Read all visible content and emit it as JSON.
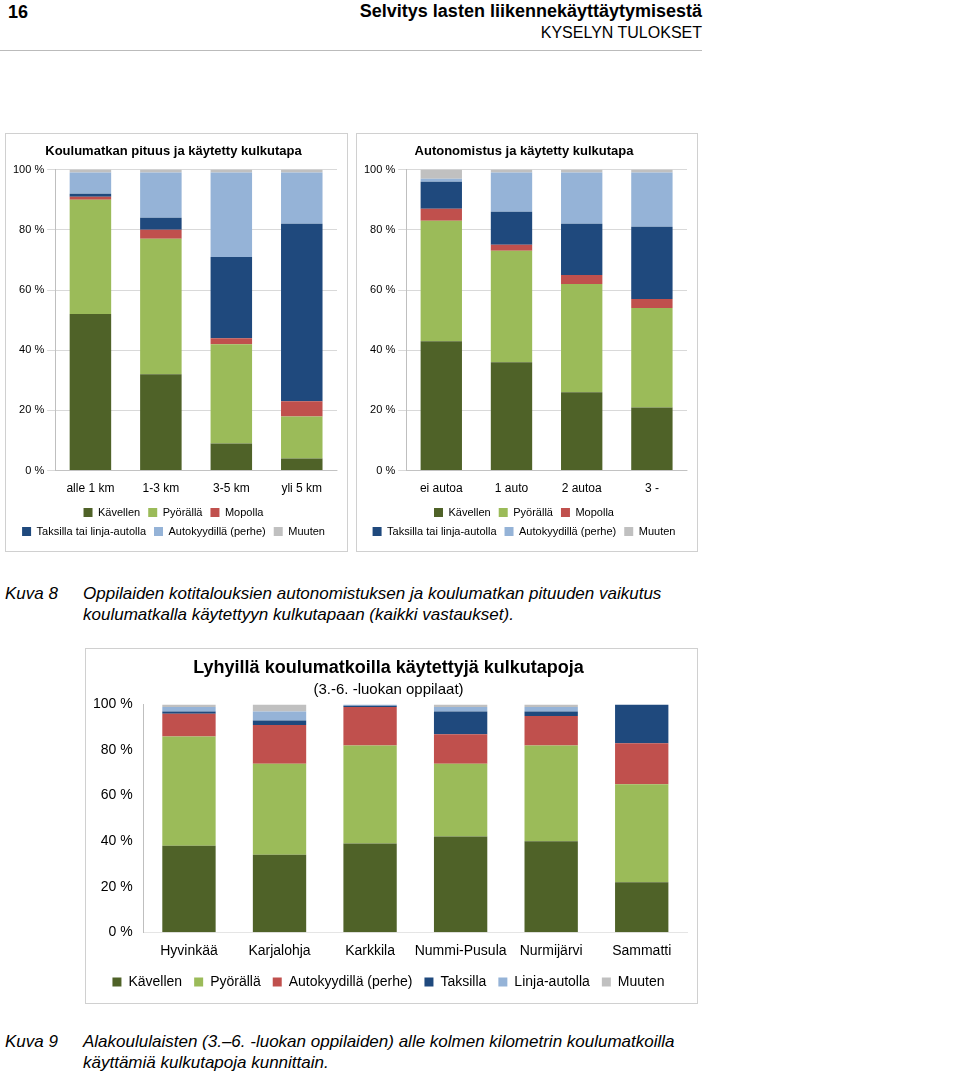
{
  "page": {
    "page_number": "16",
    "header_title": "Selvitys lasten liikennekäyttäytymisestä",
    "header_subtitle": "KYSELYN TULOKSET",
    "figures": [
      {
        "label": "Kuva 8",
        "caption": "Oppilaiden kotitalouksien autonomistuksen ja koulumatkan pituuden vaikutus koulumatkalla käytettyyn kulkutapaan (kaikki vastaukset)."
      },
      {
        "label": "Kuva 9",
        "caption": "Alakoululaisten (3.–6. -luokan oppilaiden) alle kolmen kilometrin koulumatkoilla käyttämiä kulkutapoja kunnittain."
      }
    ]
  },
  "chart_data": [
    {
      "type": "bar",
      "stacked": true,
      "title": "Koulumatkan pituus ja käytetty kulkutapa",
      "categories": [
        "alle 1 km",
        "1-3 km",
        "3-5 km",
        "yli 5 km"
      ],
      "series": [
        {
          "name": "Kävellen",
          "color": "#4f6228",
          "values": [
            52,
            32,
            9,
            4
          ]
        },
        {
          "name": "Pyörällä",
          "color": "#9bbb59",
          "values": [
            38,
            45,
            33,
            14
          ]
        },
        {
          "name": "Mopolla",
          "color": "#c0504d",
          "values": [
            1,
            3,
            2,
            5
          ]
        },
        {
          "name": "Taksilla tai linja-autolla",
          "color": "#1f497d",
          "values": [
            1,
            4,
            27,
            59
          ]
        },
        {
          "name": "Autokyydillä (perhe)",
          "color": "#95b3d7",
          "values": [
            7,
            15,
            28,
            17
          ]
        },
        {
          "name": "Muuten",
          "color": "#c0c0c0",
          "values": [
            1,
            1,
            1,
            1
          ]
        }
      ],
      "ylim": [
        0,
        100
      ],
      "yticks": [
        {
          "value": 0,
          "label": "0 %"
        },
        {
          "value": 20,
          "label": "20 %"
        },
        {
          "value": 40,
          "label": "40 %"
        },
        {
          "value": 60,
          "label": "60 %"
        },
        {
          "value": 80,
          "label": "80 %"
        },
        {
          "value": 100,
          "label": "100 %"
        }
      ],
      "grid": true,
      "legend": "bottom"
    },
    {
      "type": "bar",
      "stacked": true,
      "title": "Autonomistus ja käytetty kulkutapa",
      "categories": [
        "ei autoa",
        "1 auto",
        "2 autoa",
        "3 -"
      ],
      "series": [
        {
          "name": "Kävellen",
          "color": "#4f6228",
          "values": [
            43,
            36,
            26,
            21
          ]
        },
        {
          "name": "Pyörällä",
          "color": "#9bbb59",
          "values": [
            40,
            37,
            36,
            33
          ]
        },
        {
          "name": "Mopolla",
          "color": "#c0504d",
          "values": [
            4,
            2,
            3,
            3
          ]
        },
        {
          "name": "Taksilla tai linja-autolla",
          "color": "#1f497d",
          "values": [
            9,
            11,
            17,
            24
          ]
        },
        {
          "name": "Autokyydillä (perhe)",
          "color": "#95b3d7",
          "values": [
            1,
            13,
            17,
            18
          ]
        },
        {
          "name": "Muuten",
          "color": "#c0c0c0",
          "values": [
            3,
            1,
            1,
            1
          ]
        }
      ],
      "ylim": [
        0,
        100
      ],
      "yticks": [
        {
          "value": 0,
          "label": "0 %"
        },
        {
          "value": 20,
          "label": "20 %"
        },
        {
          "value": 40,
          "label": "40 %"
        },
        {
          "value": 60,
          "label": "60 %"
        },
        {
          "value": 80,
          "label": "80 %"
        },
        {
          "value": 100,
          "label": "100 %"
        }
      ],
      "grid": true,
      "legend": "bottom"
    },
    {
      "type": "bar",
      "stacked": true,
      "title": "Lyhyillä koulumatkoilla käytettyjä kulkutapoja",
      "subtitle": "(3.-6. -luokan oppilaat)",
      "categories": [
        "Hyvinkää",
        "Karjalohja",
        "Karkkila",
        "Nummi-Pusula",
        "Nurmijärvi",
        "Sammatti"
      ],
      "series": [
        {
          "name": "Kävellen",
          "color": "#4f6228",
          "values": [
            38,
            34,
            39,
            42,
            40,
            22
          ]
        },
        {
          "name": "Pyörällä",
          "color": "#9bbb59",
          "values": [
            48,
            40,
            43,
            32,
            42,
            43
          ]
        },
        {
          "name": "Autokyydillä (perhe)",
          "color": "#c0504d",
          "values": [
            10,
            17,
            17,
            13,
            13,
            18
          ]
        },
        {
          "name": "Taksilla",
          "color": "#1f497d",
          "values": [
            1,
            2,
            0.5,
            10,
            2,
            17
          ]
        },
        {
          "name": "Linja-autolla",
          "color": "#95b3d7",
          "values": [
            2,
            4,
            0.5,
            2,
            2,
            0
          ]
        },
        {
          "name": "Muuten",
          "color": "#c0c0c0",
          "values": [
            1,
            3,
            0,
            1,
            1,
            0
          ]
        }
      ],
      "ylim": [
        0,
        100
      ],
      "yticks": [
        {
          "value": 0,
          "label": "0 %"
        },
        {
          "value": 20,
          "label": "20 %"
        },
        {
          "value": 40,
          "label": "40 %"
        },
        {
          "value": 60,
          "label": "60 %"
        },
        {
          "value": 80,
          "label": "80 %"
        },
        {
          "value": 100,
          "label": "100 %"
        }
      ],
      "grid": false,
      "legend": "bottom"
    }
  ]
}
